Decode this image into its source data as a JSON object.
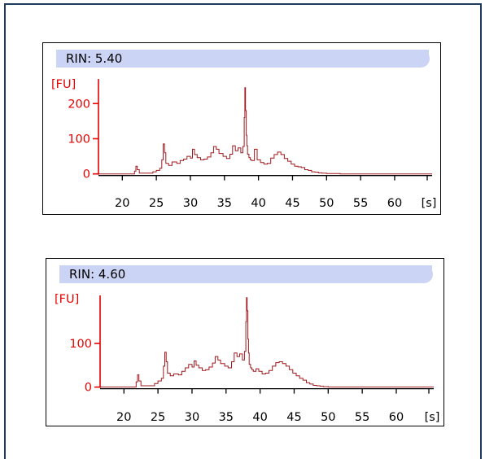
{
  "chart_data": [
    {
      "type": "line",
      "rin_label": "RIN: 5.40",
      "ylabel": "[FU]",
      "xlabel": "[s]",
      "xlim": [
        16.5,
        65.5
      ],
      "ylim": [
        -10,
        270
      ],
      "xticks": [
        "20",
        "25",
        "30",
        "35",
        "40",
        "45",
        "50",
        "55",
        "60"
      ],
      "xtick_values": [
        20,
        25,
        30,
        35,
        40,
        45,
        50,
        55,
        60
      ],
      "yticks": [
        "0",
        "100",
        "200"
      ],
      "ytick_values": [
        0,
        100,
        200
      ],
      "grid": false,
      "series": [
        {
          "color": "#a0191e",
          "x": [
            16.5,
            21.5,
            21.8,
            22.0,
            22.2,
            22.5,
            24.0,
            24.5,
            25.0,
            25.5,
            25.8,
            26.0,
            26.2,
            26.4,
            26.8,
            27.3,
            28.0,
            28.5,
            29.0,
            29.5,
            30.0,
            30.3,
            30.6,
            31.0,
            31.5,
            32.0,
            32.5,
            33.0,
            33.4,
            33.8,
            34.2,
            34.8,
            35.3,
            35.8,
            36.2,
            36.6,
            37.0,
            37.4,
            37.7,
            37.9,
            38.0,
            38.1,
            38.2,
            38.3,
            38.4,
            38.6,
            38.8,
            39.0,
            39.4,
            39.8,
            40.3,
            40.8,
            41.3,
            41.8,
            42.3,
            42.8,
            43.3,
            43.8,
            44.3,
            44.8,
            45.3,
            45.8,
            46.3,
            46.8,
            47.3,
            47.8,
            48.3,
            48.8,
            49.3,
            50.0,
            52.0,
            54.0,
            56.0,
            58.0,
            60.0,
            62.0,
            64.0,
            65.5
          ],
          "y": [
            0,
            0,
            8,
            22,
            12,
            2,
            2,
            6,
            10,
            16,
            40,
            85,
            60,
            30,
            24,
            34,
            30,
            38,
            42,
            50,
            45,
            70,
            55,
            46,
            40,
            42,
            48,
            60,
            78,
            70,
            58,
            50,
            44,
            56,
            80,
            66,
            74,
            60,
            78,
            160,
            245,
            180,
            110,
            80,
            56,
            46,
            40,
            38,
            70,
            40,
            32,
            28,
            30,
            45,
            55,
            62,
            55,
            44,
            36,
            28,
            22,
            20,
            18,
            12,
            10,
            6,
            5,
            3,
            2,
            1,
            0,
            0,
            0,
            0,
            0,
            0,
            0,
            0
          ]
        }
      ]
    },
    {
      "type": "line",
      "rin_label": "RIN: 4.60",
      "ylabel": "[FU]",
      "xlabel": "[s]",
      "xlim": [
        16.5,
        65.5
      ],
      "ylim": [
        -10,
        210
      ],
      "xticks": [
        "20",
        "25",
        "30",
        "35",
        "40",
        "45",
        "50",
        "55",
        "60"
      ],
      "xtick_values": [
        20,
        25,
        30,
        35,
        40,
        45,
        50,
        55,
        60
      ],
      "yticks": [
        "0",
        "100"
      ],
      "ytick_values": [
        0,
        100
      ],
      "grid": false,
      "series": [
        {
          "color": "#a0191e",
          "x": [
            16.5,
            21.5,
            21.8,
            22.0,
            22.2,
            22.5,
            24.0,
            24.5,
            25.0,
            25.5,
            25.8,
            26.0,
            26.2,
            26.4,
            26.8,
            27.3,
            28.0,
            28.5,
            29.0,
            29.5,
            30.0,
            30.3,
            30.6,
            31.0,
            31.5,
            32.0,
            32.5,
            33.0,
            33.4,
            33.8,
            34.2,
            34.8,
            35.3,
            35.8,
            36.2,
            36.6,
            37.0,
            37.4,
            37.7,
            37.9,
            38.0,
            38.1,
            38.2,
            38.3,
            38.4,
            38.6,
            38.8,
            39.0,
            39.4,
            39.8,
            40.3,
            40.8,
            41.3,
            41.8,
            42.3,
            42.8,
            43.3,
            43.8,
            44.3,
            44.8,
            45.3,
            45.8,
            46.3,
            46.8,
            47.3,
            47.8,
            48.3,
            48.8,
            49.3,
            50.0,
            52.0,
            54.0,
            56.0,
            58.0,
            60.0,
            62.0,
            64.0,
            65.5
          ],
          "y": [
            0,
            0,
            12,
            28,
            14,
            3,
            3,
            8,
            14,
            20,
            48,
            80,
            58,
            32,
            26,
            30,
            28,
            36,
            44,
            52,
            46,
            60,
            50,
            44,
            38,
            40,
            46,
            55,
            70,
            62,
            54,
            48,
            44,
            58,
            78,
            70,
            76,
            62,
            82,
            150,
            205,
            175,
            110,
            78,
            52,
            44,
            40,
            36,
            42,
            36,
            30,
            32,
            38,
            48,
            56,
            58,
            54,
            48,
            40,
            32,
            26,
            20,
            16,
            10,
            7,
            4,
            3,
            2,
            1,
            0,
            0,
            0,
            0,
            0,
            0,
            0,
            0,
            0
          ]
        }
      ]
    }
  ]
}
